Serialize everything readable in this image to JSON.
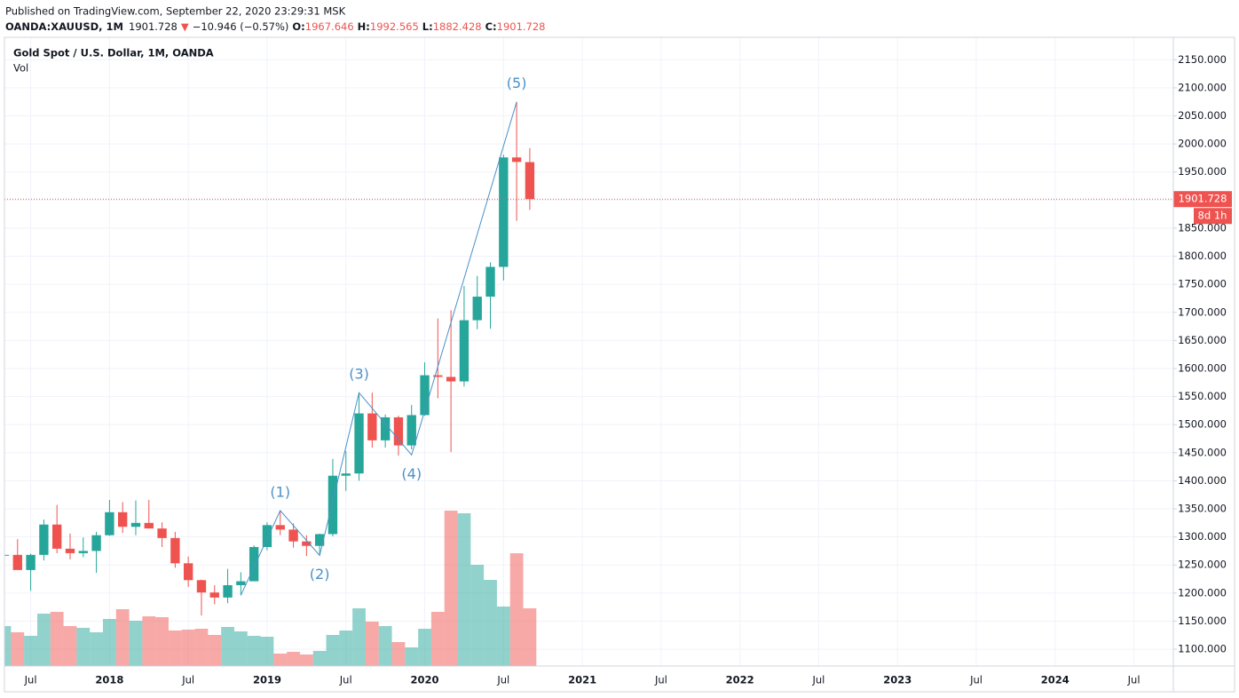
{
  "header": {
    "published": "Published on TradingView.com, September 22, 2020 23:29:31 MSK",
    "symbol": "OANDA:XAUUSD, 1M",
    "last": "1901.728",
    "arrow": "▼",
    "change": "−10.946 (−0.57%)",
    "o_label": "O:",
    "open": "1967.646",
    "h_label": "H:",
    "high": "1992.565",
    "l_label": "L:",
    "low": "1882.428",
    "c_label": "C:",
    "close": "1901.728"
  },
  "chart_data": {
    "type": "candlestick",
    "title": "Gold Spot / U.S. Dollar, 1M, OANDA",
    "x": [
      "2017-05",
      "2017-06",
      "2017-07",
      "2017-08",
      "2017-09",
      "2017-10",
      "2017-11",
      "2017-12",
      "2018-01",
      "2018-02",
      "2018-03",
      "2018-04",
      "2018-05",
      "2018-06",
      "2018-07",
      "2018-08",
      "2018-09",
      "2018-10",
      "2018-11",
      "2018-12",
      "2019-01",
      "2019-02",
      "2019-03",
      "2019-04",
      "2019-05",
      "2019-06",
      "2019-07",
      "2019-08",
      "2019-09",
      "2019-10",
      "2019-11",
      "2019-12",
      "2020-01",
      "2020-02",
      "2020-03",
      "2020-04",
      "2020-05",
      "2020-06",
      "2020-07",
      "2020-08",
      "2020-09"
    ],
    "open": [
      1268,
      1268,
      1241,
      1268,
      1322,
      1279,
      1271,
      1275,
      1303,
      1344,
      1318,
      1325,
      1315,
      1298,
      1253,
      1223,
      1201,
      1192,
      1214,
      1221,
      1282,
      1321,
      1313,
      1292,
      1284,
      1305,
      1409,
      1413,
      1520,
      1472,
      1513,
      1463,
      1517,
      1588,
      1585,
      1577,
      1686,
      1728,
      1781,
      1976,
      1967.646
    ],
    "high": [
      1270,
      1296,
      1270,
      1331,
      1357,
      1306,
      1299,
      1309,
      1366,
      1362,
      1365,
      1366,
      1326,
      1309,
      1265,
      1224,
      1214,
      1243,
      1237,
      1285,
      1326,
      1347,
      1324,
      1303,
      1306,
      1439,
      1453,
      1555,
      1557,
      1518,
      1516,
      1535,
      1611,
      1689,
      1704,
      1747,
      1765,
      1789,
      1981,
      2075,
      1992.565
    ],
    "low": [
      1214,
      1242,
      1204,
      1258,
      1271,
      1260,
      1264,
      1236,
      1302,
      1307,
      1303,
      1315,
      1282,
      1245,
      1211,
      1160,
      1180,
      1182,
      1196,
      1221,
      1276,
      1303,
      1281,
      1266,
      1267,
      1301,
      1382,
      1400,
      1459,
      1459,
      1445,
      1456,
      1516,
      1547,
      1451,
      1568,
      1670,
      1671,
      1757,
      1863,
      1882.428
    ],
    "close": [
      1268,
      1241,
      1268,
      1322,
      1279,
      1271,
      1275,
      1303,
      1344,
      1318,
      1325,
      1315,
      1298,
      1253,
      1223,
      1201,
      1192,
      1214,
      1221,
      1282,
      1321,
      1313,
      1292,
      1284,
      1305,
      1409,
      1413,
      1520,
      1472,
      1513,
      1463,
      1517,
      1588,
      1585,
      1577,
      1686,
      1728,
      1781,
      1976,
      1968,
      1901.728
    ],
    "volume": {
      "name": "Vol",
      "values": [
        45,
        38,
        34,
        59,
        61,
        45,
        43,
        38,
        53,
        64,
        51,
        56,
        55,
        40,
        41,
        42,
        35,
        44,
        39,
        34,
        33,
        14,
        16,
        13,
        17,
        35,
        40,
        65,
        50,
        45,
        27,
        21,
        42,
        61,
        175,
        172,
        114,
        97,
        67,
        127,
        65
      ]
    },
    "up_color": "#26a69a",
    "down_color": "#ef5350",
    "wave": {
      "x": [
        "2018-11",
        "2019-02",
        "2019-05",
        "2019-08",
        "2019-12",
        "2020-08"
      ],
      "y": [
        1196,
        1347,
        1267,
        1557,
        1446,
        2075
      ],
      "labels": [
        null,
        "(1)",
        "(2)",
        "(3)",
        "(4)",
        "(5)"
      ],
      "color": "#4a90c8"
    },
    "last_price": {
      "value": 1901.728,
      "label": "1901.728"
    },
    "countdown": "8d 1h",
    "xlim": [
      "2017-05",
      "2024-10"
    ],
    "xticks": [
      {
        "value": "2017-07",
        "label": "Jul"
      },
      {
        "value": "2018-01",
        "label": "2018"
      },
      {
        "value": "2018-07",
        "label": "Jul"
      },
      {
        "value": "2019-01",
        "label": "2019"
      },
      {
        "value": "2019-07",
        "label": "Jul"
      },
      {
        "value": "2020-01",
        "label": "2020"
      },
      {
        "value": "2020-07",
        "label": "Jul"
      },
      {
        "value": "2021-01",
        "label": "2021"
      },
      {
        "value": "2021-07",
        "label": "Jul"
      },
      {
        "value": "2022-01",
        "label": "2022"
      },
      {
        "value": "2022-07",
        "label": "Jul"
      },
      {
        "value": "2023-01",
        "label": "2023"
      },
      {
        "value": "2023-07",
        "label": "Jul"
      },
      {
        "value": "2024-01",
        "label": "2024"
      },
      {
        "value": "2024-07",
        "label": "Jul"
      }
    ],
    "ylim": [
      1070,
      2190
    ],
    "yticks": [
      {
        "value": 1100,
        "label": "1100.000"
      },
      {
        "value": 1150,
        "label": "1150.000"
      },
      {
        "value": 1200,
        "label": "1200.000"
      },
      {
        "value": 1250,
        "label": "1250.000"
      },
      {
        "value": 1300,
        "label": "1300.000"
      },
      {
        "value": 1350,
        "label": "1350.000"
      },
      {
        "value": 1400,
        "label": "1400.000"
      },
      {
        "value": 1450,
        "label": "1450.000"
      },
      {
        "value": 1500,
        "label": "1500.000"
      },
      {
        "value": 1550,
        "label": "1550.000"
      },
      {
        "value": 1600,
        "label": "1600.000"
      },
      {
        "value": 1650,
        "label": "1650.000"
      },
      {
        "value": 1700,
        "label": "1700.000"
      },
      {
        "value": 1750,
        "label": "1750.000"
      },
      {
        "value": 1800,
        "label": "1800.000"
      },
      {
        "value": 1850,
        "label": "1850.000"
      },
      {
        "value": 1900,
        "label": "1900.000"
      },
      {
        "value": 1950,
        "label": "1950.000"
      },
      {
        "value": 2000,
        "label": "2000.000"
      },
      {
        "value": 2050,
        "label": "2050.000"
      },
      {
        "value": 2100,
        "label": "2100.000"
      },
      {
        "value": 2150,
        "label": "2150.000"
      }
    ],
    "grid": true
  }
}
